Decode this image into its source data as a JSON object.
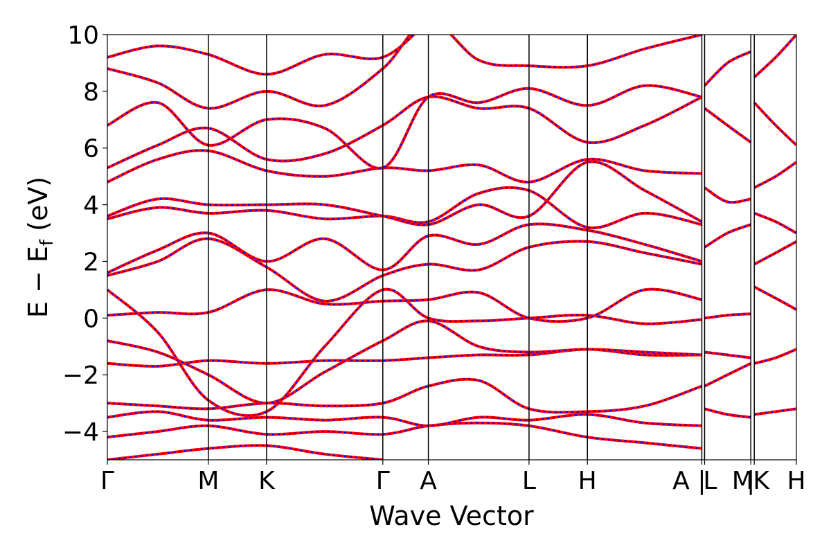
{
  "chart_data": {
    "type": "line",
    "title": "",
    "xlabel": "Wave Vector",
    "ylabel": "E − E_f (eV)",
    "ylabel_parts": {
      "pre": "E − E",
      "sub": "f",
      "post": " (eV)"
    },
    "ylim": [
      -5,
      10
    ],
    "yticks": [
      -4,
      -2,
      0,
      2,
      4,
      6,
      8,
      10
    ],
    "ytick_labels": [
      "−4",
      "−2",
      "0",
      "2",
      "4",
      "6",
      "8",
      "10"
    ],
    "xlim": [
      0,
      1
    ],
    "kpath_ticks": [
      {
        "x": 0.0,
        "label": "Γ"
      },
      {
        "x": 0.1466,
        "label": "M"
      },
      {
        "x": 0.2311,
        "label": "K"
      },
      {
        "x": 0.3998,
        "label": "Γ"
      },
      {
        "x": 0.4659,
        "label": "A"
      },
      {
        "x": 0.612,
        "label": "L"
      },
      {
        "x": 0.6967,
        "label": "H"
      },
      {
        "x": 0.8628,
        "label": "A"
      },
      {
        "x": 0.8628,
        "label": "|"
      },
      {
        "x": 0.8668,
        "label": "L"
      },
      {
        "x": 0.9339,
        "label": "M"
      },
      {
        "x": 0.9339,
        "label": "|"
      },
      {
        "x": 0.9389,
        "label": "K"
      },
      {
        "x": 1.0,
        "label": "H"
      }
    ],
    "grid": false,
    "series_style": {
      "dft": "#ff0000",
      "fit": "#0000ff"
    },
    "bands": [
      [
        [
          0.0,
          -5.0
        ],
        [
          0.0733,
          -4.8
        ],
        [
          0.1466,
          -4.6
        ],
        [
          0.2311,
          -4.5
        ],
        [
          0.3155,
          -4.8
        ],
        [
          0.3998,
          -5.0
        ]
      ],
      [
        [
          0.0,
          -4.2
        ],
        [
          0.0733,
          -4.0
        ],
        [
          0.1466,
          -3.8
        ],
        [
          0.2311,
          -4.1
        ],
        [
          0.3155,
          -4.0
        ],
        [
          0.3998,
          -4.1
        ],
        [
          0.4659,
          -3.8
        ],
        [
          0.539,
          -3.7
        ],
        [
          0.612,
          -3.8
        ],
        [
          0.6967,
          -4.2
        ],
        [
          0.78,
          -4.4
        ],
        [
          0.8628,
          -4.6
        ]
      ],
      [
        [
          0.0,
          -3.5
        ],
        [
          0.0733,
          -3.3
        ],
        [
          0.1466,
          -3.6
        ],
        [
          0.2311,
          -3.5
        ],
        [
          0.3155,
          -3.6
        ],
        [
          0.3998,
          -3.5
        ],
        [
          0.4659,
          -3.8
        ],
        [
          0.539,
          -3.5
        ],
        [
          0.612,
          -3.6
        ],
        [
          0.6967,
          -3.4
        ],
        [
          0.78,
          -3.7
        ],
        [
          0.8628,
          -3.8
        ]
      ],
      [
        [
          0.0,
          -3.0
        ],
        [
          0.0733,
          -3.1
        ],
        [
          0.1466,
          -3.2
        ],
        [
          0.2311,
          -3.0
        ],
        [
          0.3155,
          -3.1
        ],
        [
          0.3998,
          -3.0
        ],
        [
          0.4659,
          -2.4
        ],
        [
          0.539,
          -2.2
        ],
        [
          0.612,
          -3.2
        ],
        [
          0.6967,
          -3.3
        ],
        [
          0.78,
          -3.1
        ],
        [
          0.8628,
          -2.4
        ]
      ],
      [
        [
          0.0,
          -1.6
        ],
        [
          0.0733,
          -1.7
        ],
        [
          0.1466,
          -1.5
        ],
        [
          0.2311,
          -1.6
        ],
        [
          0.3155,
          -1.5
        ],
        [
          0.3998,
          -1.5
        ],
        [
          0.4659,
          -1.4
        ],
        [
          0.539,
          -1.3
        ],
        [
          0.612,
          -1.3
        ],
        [
          0.6967,
          -1.1
        ],
        [
          0.78,
          -1.3
        ],
        [
          0.8628,
          -1.3
        ]
      ],
      [
        [
          0.0,
          -0.8
        ],
        [
          0.0733,
          -1.2
        ],
        [
          0.1466,
          -2.0
        ],
        [
          0.2311,
          -3.0
        ],
        [
          0.3155,
          -1.9
        ],
        [
          0.3998,
          -0.8
        ],
        [
          0.4659,
          -0.1
        ],
        [
          0.539,
          -1.0
        ],
        [
          0.612,
          -1.2
        ],
        [
          0.6967,
          -1.1
        ],
        [
          0.78,
          -1.2
        ],
        [
          0.8628,
          -1.3
        ]
      ],
      [
        [
          0.0,
          1.0
        ],
        [
          0.0733,
          -0.5
        ],
        [
          0.1466,
          -2.9
        ],
        [
          0.2311,
          -3.3
        ],
        [
          0.3155,
          -1.0
        ],
        [
          0.3998,
          1.0
        ],
        [
          0.4659,
          0.0
        ],
        [
          0.539,
          -0.1
        ],
        [
          0.612,
          0.0
        ],
        [
          0.6967,
          0.1
        ],
        [
          0.78,
          -0.2
        ],
        [
          0.8628,
          -0.05
        ]
      ],
      [
        [
          0.0,
          0.1
        ],
        [
          0.0733,
          0.2
        ],
        [
          0.1466,
          0.2
        ],
        [
          0.2311,
          1.0
        ],
        [
          0.3155,
          0.5
        ],
        [
          0.3998,
          0.6
        ],
        [
          0.4659,
          0.65
        ],
        [
          0.539,
          0.9
        ],
        [
          0.612,
          0.0
        ],
        [
          0.6967,
          0.0
        ],
        [
          0.78,
          1.0
        ],
        [
          0.8628,
          0.65
        ]
      ],
      [
        [
          0.0,
          1.5
        ],
        [
          0.0733,
          2.0
        ],
        [
          0.1466,
          2.8
        ],
        [
          0.2311,
          1.8
        ],
        [
          0.3155,
          0.6
        ],
        [
          0.3998,
          1.5
        ],
        [
          0.4659,
          1.9
        ],
        [
          0.539,
          1.7
        ],
        [
          0.612,
          2.5
        ],
        [
          0.6967,
          2.7
        ],
        [
          0.78,
          2.3
        ],
        [
          0.8628,
          1.9
        ]
      ],
      [
        [
          0.0,
          1.6
        ],
        [
          0.0733,
          2.4
        ],
        [
          0.1466,
          3.0
        ],
        [
          0.2311,
          2.0
        ],
        [
          0.3155,
          2.8
        ],
        [
          0.3998,
          1.7
        ],
        [
          0.4659,
          2.9
        ],
        [
          0.539,
          2.6
        ],
        [
          0.612,
          3.3
        ],
        [
          0.6967,
          3.1
        ],
        [
          0.78,
          2.6
        ],
        [
          0.8628,
          2.0
        ]
      ],
      [
        [
          0.0,
          3.5
        ],
        [
          0.0733,
          3.9
        ],
        [
          0.1466,
          3.7
        ],
        [
          0.2311,
          3.8
        ],
        [
          0.3155,
          3.5
        ],
        [
          0.3998,
          3.6
        ],
        [
          0.4659,
          3.4
        ],
        [
          0.539,
          4.4
        ],
        [
          0.612,
          4.5
        ],
        [
          0.6967,
          3.2
        ],
        [
          0.78,
          3.7
        ],
        [
          0.8628,
          3.3
        ]
      ],
      [
        [
          0.0,
          3.6
        ],
        [
          0.0733,
          4.2
        ],
        [
          0.1466,
          4.0
        ],
        [
          0.2311,
          4.0
        ],
        [
          0.3155,
          4.0
        ],
        [
          0.3998,
          3.6
        ],
        [
          0.4659,
          3.3
        ],
        [
          0.539,
          4.0
        ],
        [
          0.612,
          3.6
        ],
        [
          0.6967,
          5.5
        ],
        [
          0.78,
          4.5
        ],
        [
          0.8628,
          3.4
        ]
      ],
      [
        [
          0.0,
          4.8
        ],
        [
          0.0733,
          5.6
        ],
        [
          0.1466,
          5.9
        ],
        [
          0.2311,
          5.2
        ],
        [
          0.3155,
          5.0
        ],
        [
          0.3998,
          5.3
        ],
        [
          0.4659,
          5.2
        ],
        [
          0.539,
          5.4
        ],
        [
          0.612,
          4.8
        ],
        [
          0.6967,
          5.6
        ],
        [
          0.78,
          5.2
        ],
        [
          0.8628,
          5.1
        ]
      ],
      [
        [
          0.0,
          5.3
        ],
        [
          0.0733,
          6.1
        ],
        [
          0.1466,
          6.7
        ],
        [
          0.2311,
          5.6
        ],
        [
          0.3155,
          5.8
        ],
        [
          0.3998,
          6.8
        ],
        [
          0.4659,
          7.8
        ],
        [
          0.539,
          7.4
        ],
        [
          0.612,
          7.4
        ],
        [
          0.6967,
          6.2
        ],
        [
          0.78,
          6.8
        ],
        [
          0.8628,
          7.8
        ]
      ],
      [
        [
          0.0,
          6.8
        ],
        [
          0.0733,
          7.6
        ],
        [
          0.1466,
          6.1
        ],
        [
          0.2311,
          7.0
        ],
        [
          0.3155,
          6.7
        ],
        [
          0.3998,
          5.3
        ],
        [
          0.4659,
          7.8
        ],
        [
          0.539,
          7.6
        ],
        [
          0.612,
          8.1
        ],
        [
          0.6967,
          7.5
        ],
        [
          0.78,
          8.2
        ],
        [
          0.8628,
          7.8
        ]
      ],
      [
        [
          0.0,
          8.8
        ],
        [
          0.0733,
          8.3
        ],
        [
          0.1466,
          7.4
        ],
        [
          0.2311,
          8.0
        ],
        [
          0.3155,
          7.5
        ],
        [
          0.3998,
          8.8
        ],
        [
          0.4659,
          10.5
        ],
        [
          0.539,
          9.1
        ],
        [
          0.612,
          8.9
        ],
        [
          0.6967,
          8.9
        ],
        [
          0.78,
          9.5
        ],
        [
          0.8628,
          10.0
        ]
      ],
      [
        [
          0.0,
          9.2
        ],
        [
          0.0733,
          9.6
        ],
        [
          0.1466,
          9.3
        ],
        [
          0.2311,
          8.6
        ],
        [
          0.3155,
          9.3
        ],
        [
          0.3998,
          9.2
        ],
        [
          0.4659,
          10.5
        ]
      ],
      [
        [
          0.8668,
          -3.2
        ],
        [
          0.9,
          -3.4
        ],
        [
          0.9339,
          -3.5
        ]
      ],
      [
        [
          0.8668,
          -2.4
        ],
        [
          0.9,
          -2.0
        ],
        [
          0.9339,
          -1.6
        ]
      ],
      [
        [
          0.8668,
          -1.2
        ],
        [
          0.9,
          -1.3
        ],
        [
          0.9339,
          -1.4
        ]
      ],
      [
        [
          0.8668,
          0.0
        ],
        [
          0.9,
          0.1
        ],
        [
          0.9339,
          0.15
        ]
      ],
      [
        [
          0.8668,
          2.5
        ],
        [
          0.9,
          3.0
        ],
        [
          0.9339,
          3.3
        ]
      ],
      [
        [
          0.8668,
          4.6
        ],
        [
          0.9,
          4.1
        ],
        [
          0.9339,
          4.2
        ]
      ],
      [
        [
          0.8668,
          7.4
        ],
        [
          0.9,
          6.8
        ],
        [
          0.9339,
          6.2
        ]
      ],
      [
        [
          0.8668,
          8.2
        ],
        [
          0.9,
          9.0
        ],
        [
          0.9339,
          9.4
        ]
      ],
      [
        [
          0.9389,
          -3.4
        ],
        [
          0.97,
          -3.3
        ],
        [
          1.0,
          -3.2
        ]
      ],
      [
        [
          0.9389,
          -1.6
        ],
        [
          0.97,
          -1.4
        ],
        [
          1.0,
          -1.1
        ]
      ],
      [
        [
          0.9389,
          1.1
        ],
        [
          0.97,
          0.7
        ],
        [
          1.0,
          0.3
        ]
      ],
      [
        [
          0.9389,
          1.9
        ],
        [
          0.97,
          2.3
        ],
        [
          1.0,
          2.7
        ]
      ],
      [
        [
          0.9389,
          3.7
        ],
        [
          0.97,
          3.4
        ],
        [
          1.0,
          3.0
        ]
      ],
      [
        [
          0.9389,
          4.6
        ],
        [
          0.97,
          5.0
        ],
        [
          1.0,
          5.5
        ]
      ],
      [
        [
          0.9389,
          7.6
        ],
        [
          0.97,
          6.8
        ],
        [
          1.0,
          6.1
        ]
      ],
      [
        [
          0.9389,
          8.5
        ],
        [
          0.97,
          9.2
        ],
        [
          1.0,
          10.0
        ]
      ]
    ]
  }
}
